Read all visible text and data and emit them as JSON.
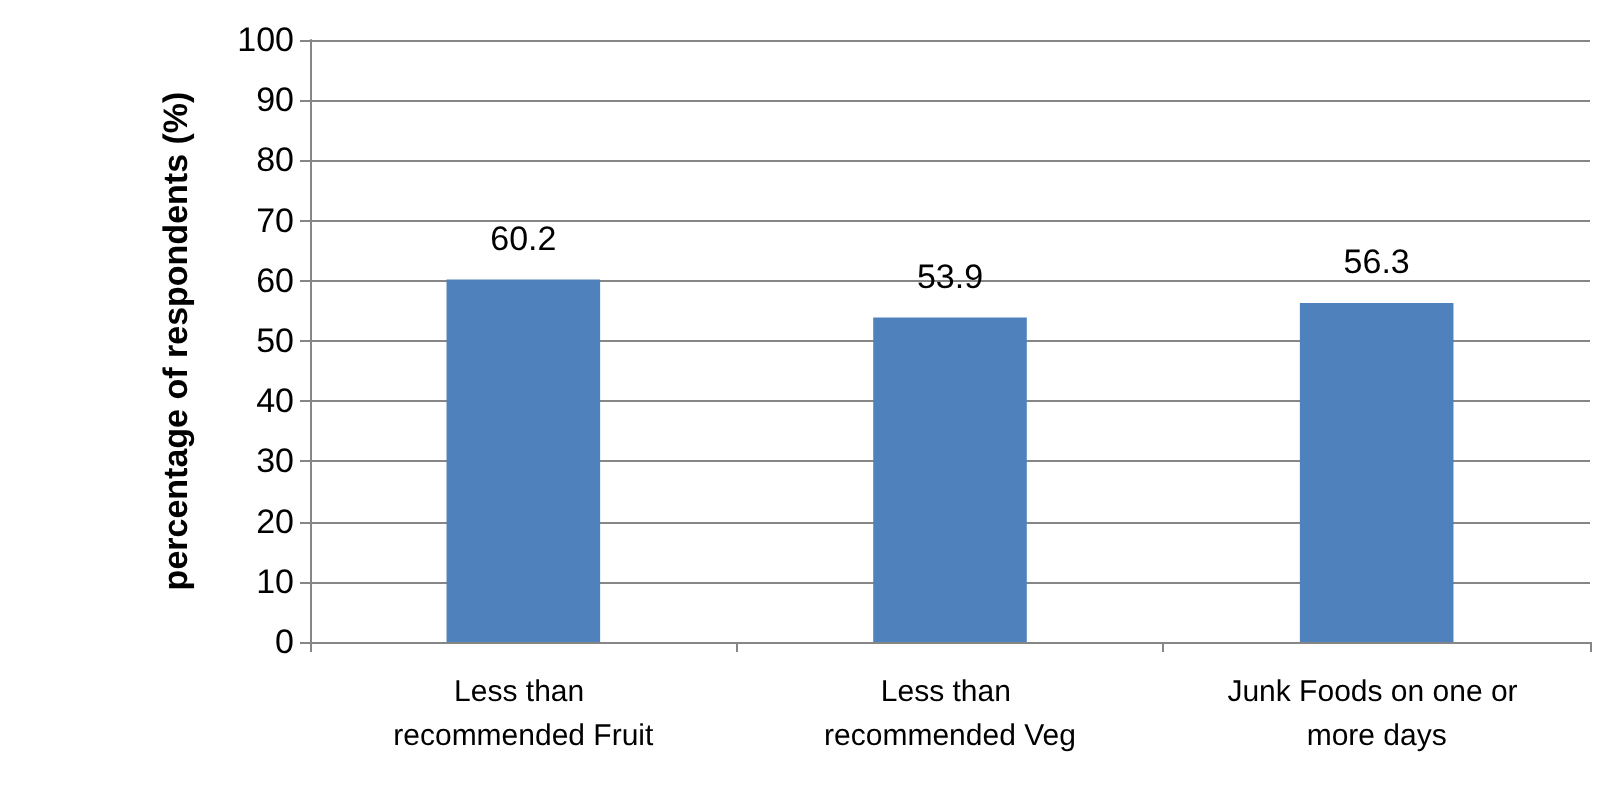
{
  "chart_data": {
    "type": "bar",
    "ylabel": "percentage of respondents (%)",
    "categories": [
      "Less than recommended Fruit",
      "Less than recommended Veg",
      "Junk Foods on one or more days"
    ],
    "values": [
      60.2,
      53.9,
      56.3
    ],
    "color": "#4f81bd",
    "ylim": [
      0,
      100
    ],
    "yticks": [
      0,
      10,
      20,
      30,
      40,
      50,
      60,
      70,
      80,
      90,
      100
    ],
    "grid": "y",
    "data_labels": true
  }
}
